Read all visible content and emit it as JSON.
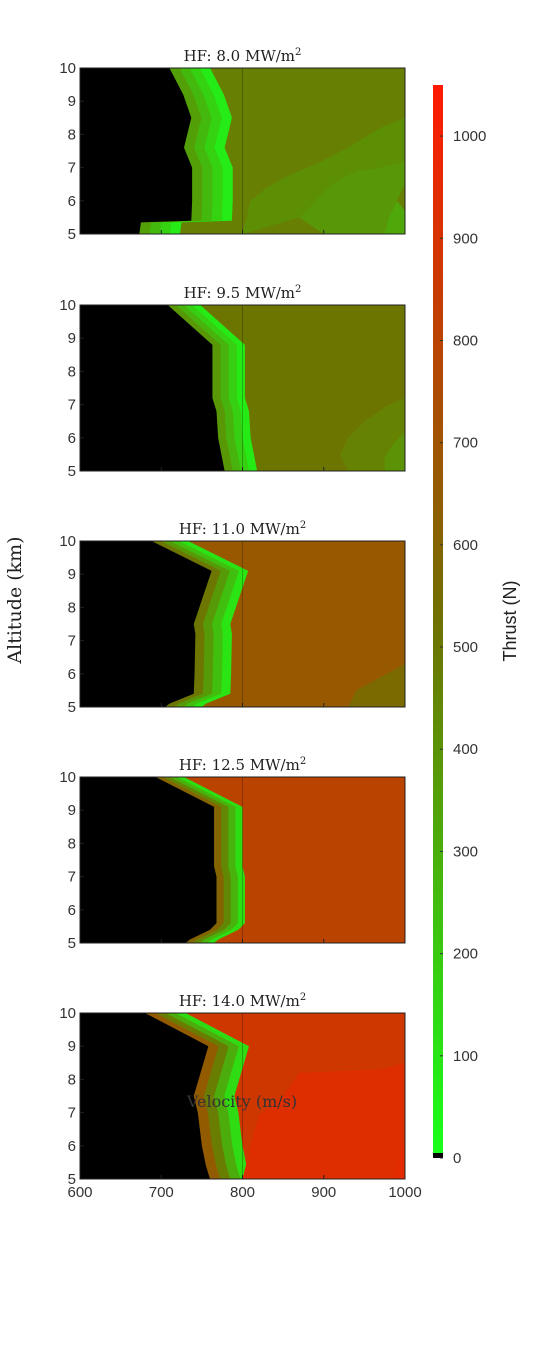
{
  "figure": {
    "ylabel": "Altitude (km)",
    "xlabel": "Velocity (m/s)",
    "colorbar": {
      "label": "Thrust (N)",
      "min": 0,
      "max": 1050,
      "ticks": [
        0,
        100,
        200,
        300,
        400,
        500,
        600,
        700,
        800,
        900,
        1000
      ],
      "colors": {
        "zero": "#000000",
        "low": "#19ff19",
        "mid": "#707000",
        "high": "#ff1a00"
      }
    }
  },
  "chart_data": [
    {
      "type": "heatmap",
      "title": "HF: 8.0 MW/m²",
      "title_parts": {
        "prefix": "HF: 8.0 MW/m",
        "sup": "2"
      },
      "xlim": [
        600,
        1000
      ],
      "ylim": [
        5,
        10
      ],
      "yticks": [
        5,
        6,
        7,
        8,
        9,
        10
      ],
      "xticks": [
        600,
        700,
        800,
        900,
        1000
      ],
      "show_xticklabels": false,
      "zero_boundary": [
        [
          710,
          10
        ],
        [
          727,
          9.2
        ],
        [
          737,
          8.5
        ],
        [
          728,
          7.6
        ],
        [
          733,
          7.3
        ],
        [
          738,
          7
        ],
        [
          738,
          6
        ],
        [
          737,
          5.4
        ],
        [
          675,
          5.35
        ],
        [
          673,
          5
        ]
      ],
      "green_width": 50,
      "bulk_thrust": 470,
      "patches": [
        {
          "thrust": 320,
          "points": [
            [
              975,
              5
            ],
            [
              1000,
              5
            ],
            [
              1000,
              5.7
            ],
            [
              990,
              6
            ],
            [
              980,
              5.5
            ]
          ]
        },
        {
          "thrust": 380,
          "points": [
            [
              900,
              5
            ],
            [
              975,
              5
            ],
            [
              980,
              5.5
            ],
            [
              990,
              6
            ],
            [
              1000,
              6.5
            ],
            [
              1000,
              7.2
            ],
            [
              970,
              7
            ],
            [
              940,
              6.9
            ],
            [
              910,
              6.5
            ],
            [
              890,
              6
            ],
            [
              870,
              5.5
            ]
          ]
        },
        {
          "thrust": 410,
          "points": [
            [
              870,
              5.5
            ],
            [
              890,
              6
            ],
            [
              910,
              6.5
            ],
            [
              940,
              6.9
            ],
            [
              970,
              7
            ],
            [
              1000,
              7.2
            ],
            [
              1000,
              8.5
            ],
            [
              970,
              8.2
            ],
            [
              930,
              7.6
            ],
            [
              890,
              7.1
            ],
            [
              860,
              6.8
            ],
            [
              830,
              6.4
            ],
            [
              810,
              6
            ],
            [
              800,
              5
            ]
          ]
        }
      ]
    },
    {
      "type": "heatmap",
      "title": "HF: 9.5 MW/m²",
      "title_parts": {
        "prefix": "HF: 9.5 MW/m",
        "sup": "2"
      },
      "xlim": [
        600,
        1000
      ],
      "ylim": [
        5,
        10
      ],
      "yticks": [
        5,
        6,
        7,
        8,
        9,
        10
      ],
      "xticks": [
        600,
        700,
        800,
        900,
        1000
      ],
      "show_xticklabels": false,
      "zero_boundary": [
        [
          708,
          10
        ],
        [
          763,
          8.8
        ],
        [
          763,
          7.2
        ],
        [
          768,
          6.8
        ],
        [
          770,
          6
        ],
        [
          778,
          5
        ]
      ],
      "green_width": 40,
      "bulk_thrust": 505,
      "patches": [
        {
          "thrust": 460,
          "points": [
            [
              930,
              5
            ],
            [
              1000,
              5
            ],
            [
              1000,
              7.2
            ],
            [
              980,
              7
            ],
            [
              950,
              6.5
            ],
            [
              930,
              6
            ],
            [
              920,
              5.5
            ]
          ]
        },
        {
          "thrust": 400,
          "points": [
            [
              975,
              5
            ],
            [
              1000,
              5
            ],
            [
              1000,
              6.2
            ],
            [
              985,
              5.8
            ],
            [
              975,
              5.4
            ]
          ]
        }
      ]
    },
    {
      "type": "heatmap",
      "title": "HF: 11.0 MW/m²",
      "title_parts": {
        "prefix": "HF: 11.0 MW/m",
        "sup": "2"
      },
      "xlim": [
        600,
        1000
      ],
      "ylim": [
        5,
        10
      ],
      "yticks": [
        5,
        6,
        7,
        8,
        9,
        10
      ],
      "xticks": [
        600,
        700,
        800,
        900,
        1000
      ],
      "show_xticklabels": false,
      "zero_boundary": [
        [
          688,
          10
        ],
        [
          762,
          9.1
        ],
        [
          740,
          7.5
        ],
        [
          742,
          7.2
        ],
        [
          741,
          6
        ],
        [
          740,
          5.4
        ],
        [
          710,
          5.1
        ],
        [
          705,
          5
        ]
      ],
      "green_width": 45,
      "bulk_thrust": 670,
      "patches": [
        {
          "thrust": 560,
          "points": [
            [
              930,
              5
            ],
            [
              1000,
              5
            ],
            [
              1000,
              6.3
            ],
            [
              970,
              5.9
            ],
            [
              940,
              5.5
            ]
          ]
        }
      ]
    },
    {
      "type": "heatmap",
      "title": "HF: 12.5 MW/m²",
      "title_parts": {
        "prefix": "HF: 12.5 MW/m",
        "sup": "2"
      },
      "xlim": [
        600,
        1000
      ],
      "ylim": [
        5,
        10
      ],
      "yticks": [
        5,
        6,
        7,
        8,
        9,
        10
      ],
      "xticks": [
        600,
        700,
        800,
        900,
        1000
      ],
      "show_xticklabels": false,
      "zero_boundary": [
        [
          693,
          10
        ],
        [
          765,
          9.1
        ],
        [
          765,
          7.3
        ],
        [
          768,
          7
        ],
        [
          768,
          5.6
        ],
        [
          760,
          5.4
        ],
        [
          735,
          5.1
        ],
        [
          730,
          5
        ]
      ],
      "green_width": 35,
      "bulk_thrust": 800,
      "patches": []
    },
    {
      "type": "heatmap",
      "title": "HF: 14.0 MW/m²",
      "title_parts": {
        "prefix": "HF: 14.0 MW/m",
        "sup": "2"
      },
      "xlim": [
        600,
        1000
      ],
      "ylim": [
        5,
        10
      ],
      "yticks": [
        5,
        6,
        7,
        8,
        9,
        10
      ],
      "xticks": [
        600,
        700,
        800,
        900,
        1000
      ],
      "show_xticklabels": true,
      "zero_boundary": [
        [
          680,
          10
        ],
        [
          758,
          9
        ],
        [
          740,
          7.5
        ],
        [
          745,
          7
        ],
        [
          750,
          6
        ],
        [
          755,
          5.4
        ],
        [
          760,
          5
        ]
      ],
      "green_width": 50,
      "bulk_thrust": 870,
      "patches": [
        {
          "thrust": 930,
          "points": [
            [
              800,
              5
            ],
            [
              1000,
              5
            ],
            [
              1000,
              8.5
            ],
            [
              970,
              8.3
            ],
            [
              870,
              8.2
            ],
            [
              850,
              7.5
            ],
            [
              835,
              7.2
            ],
            [
              820,
              6.9
            ],
            [
              815,
              6.5
            ],
            [
              810,
              6
            ],
            [
              805,
              5.5
            ]
          ]
        },
        {
          "thrust": 950,
          "points": [
            [
              985,
              5
            ],
            [
              1000,
              5
            ],
            [
              1000,
              6.2
            ],
            [
              992,
              5.6
            ]
          ]
        }
      ]
    }
  ]
}
